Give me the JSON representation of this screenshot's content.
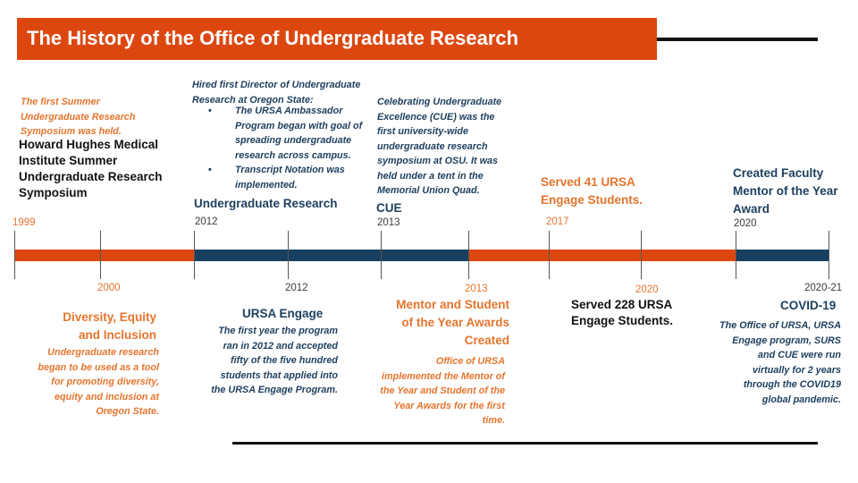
{
  "title": "The History of the Office of Undergraduate Research",
  "colors": {
    "orange": "#dc4710",
    "navy": "#173f5f",
    "text_orange": "#e4752e",
    "text_blue": "#1d3e5e"
  },
  "timeline": {
    "top_years": [
      "1999",
      "2012",
      "2013",
      "2017",
      "2020"
    ],
    "bottom_years": [
      "2000",
      "2012",
      "2013",
      "2020",
      "2020-21"
    ]
  },
  "events": {
    "e1999": {
      "note": "The first Summer Undergraduate Research Symposium was held.",
      "title": "Howard Hughes Medical Institute Summer Undergraduate Research Symposium"
    },
    "e2012_top": {
      "intro": "Hired first Director of Undergraduate Research at Oregon State:",
      "bullets": [
        "The URSA Ambassador Program began with goal of spreading undergraduate research across campus.",
        "Transcript Notation was implemented."
      ],
      "title": "Undergraduate Research"
    },
    "e2013_top": {
      "note": "Celebrating Undergraduate Excellence (CUE) was the first university-wide undergraduate research symposium at OSU. It was held under a tent in the Memorial Union Quad.",
      "title": "CUE"
    },
    "e2017": {
      "title": "Served 41 URSA Engage Students."
    },
    "e2020_top": {
      "title": "Created Faculty Mentor of the Year Award"
    },
    "e2000": {
      "title": "Diversity, Equity and Inclusion",
      "note": "Undergraduate research began to be used as a tool for promoting diversity, equity and inclusion at Oregon State."
    },
    "e2012_bottom": {
      "title": "URSA Engage",
      "note": "The first year the program ran in 2012 and accepted fifty of the five hundred students that applied into the URSA Engage Program."
    },
    "e2013_bottom": {
      "title": "Mentor and Student of the Year Awards Created",
      "note": "Office of URSA implemented the Mentor of the Year and Student of the Year Awards for the first time."
    },
    "e2020_bottom": {
      "title": "Served 228 URSA Engage Students."
    },
    "e2020_21": {
      "title": "COVID-19",
      "note": "The Office of URSA, URSA Engage program, SURS and CUE were run virtually for 2 years through the COVID19 global  pandemic."
    }
  }
}
